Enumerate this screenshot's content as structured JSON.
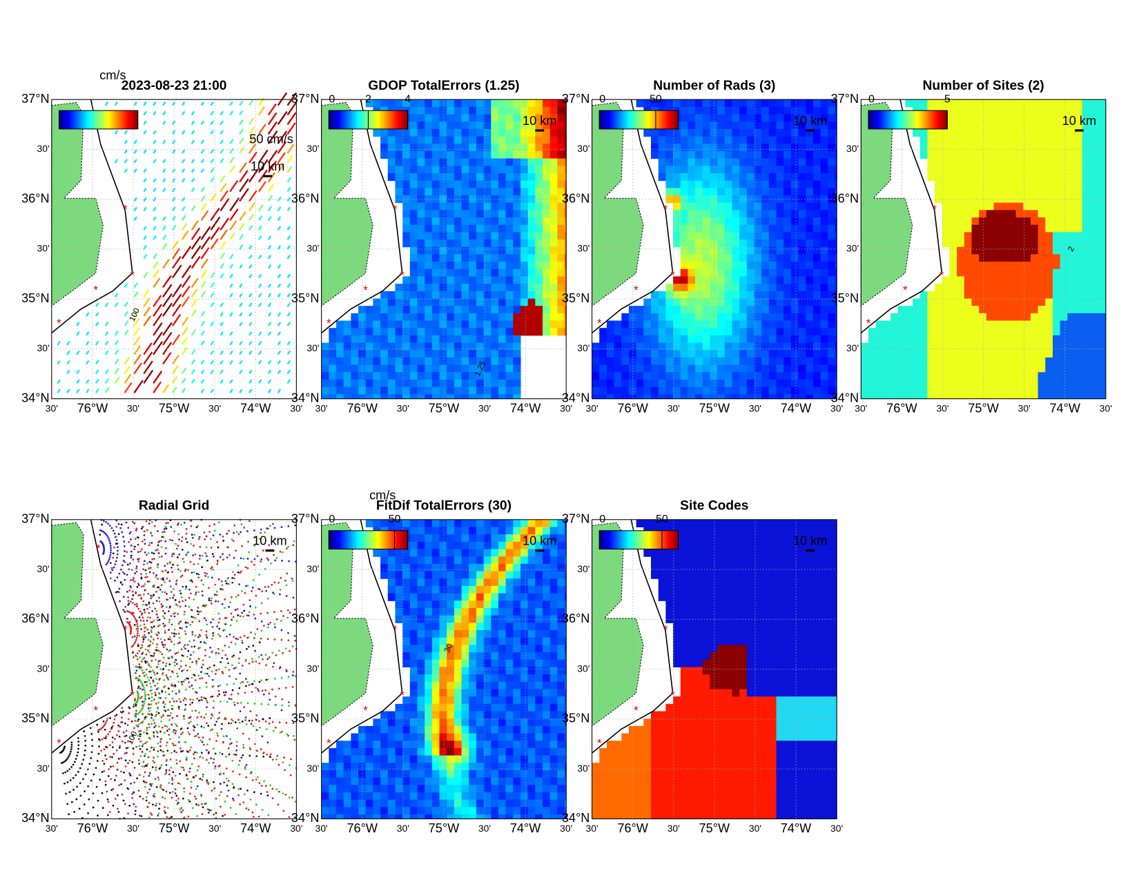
{
  "lat_labels": [
    "37°N",
    "30'",
    "36°N",
    "30'",
    "35°N",
    "30'",
    "34°N"
  ],
  "lon_labels": [
    "30'",
    "76°W",
    "30'",
    "75°W",
    "30'",
    "74°W",
    "30'"
  ],
  "panels": [
    {
      "title": "2023-08-23 21:00",
      "colorbar_unit": "cm/s",
      "vector_scale": "50 cm/s",
      "scale_bar": "10 km",
      "contour_label": "100"
    },
    {
      "title": "GDOP TotalErrors (1.25)",
      "colorbar_ticks": [
        0,
        2,
        4
      ],
      "colorbar_lim": [
        0,
        4
      ],
      "scale_bar": "10 km",
      "contour_label": "1.25"
    },
    {
      "title": "Number of Rads (3)",
      "colorbar_ticks": [
        0,
        50
      ],
      "colorbar_lim": [
        0,
        70
      ],
      "scale_bar": "10 km"
    },
    {
      "title": "Number of Sites (2)",
      "colorbar_ticks": [
        0,
        5
      ],
      "colorbar_lim": [
        0,
        5
      ],
      "scale_bar": "10 km",
      "contour_label": "2"
    },
    {
      "title": "Radial Grid",
      "scale_bar": "10 km",
      "contour_label": "100"
    },
    {
      "title": "FitDif TotalErrors (30)",
      "colorbar_unit": "cm/s",
      "colorbar_ticks": [
        0,
        50
      ],
      "colorbar_lim": [
        0,
        60
      ],
      "scale_bar": "10 km",
      "contour_label": "30"
    },
    {
      "title": "Site Codes",
      "colorbar_ticks": [
        0,
        50
      ],
      "colorbar_lim": [
        0,
        63
      ],
      "scale_bar": "10 km"
    }
  ]
}
